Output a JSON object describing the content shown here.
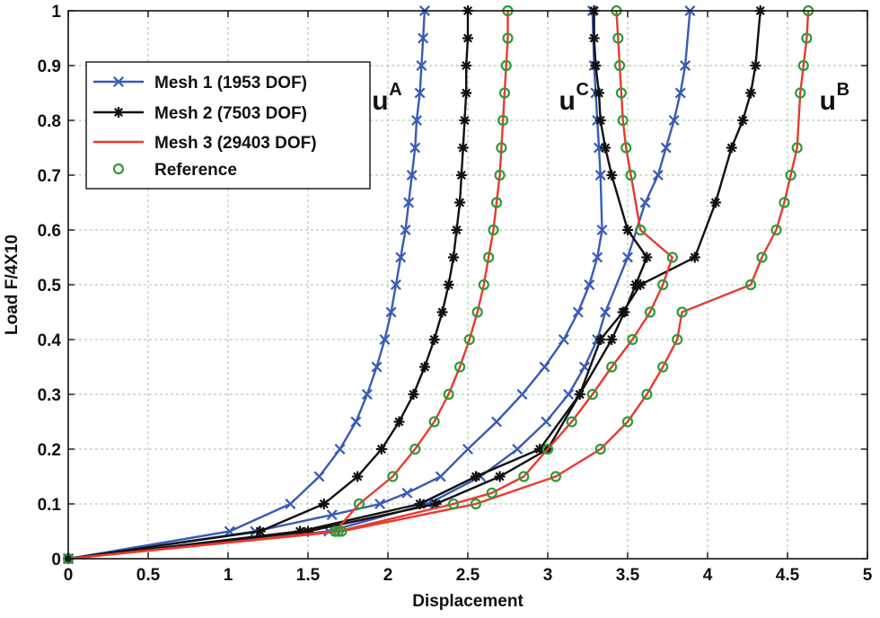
{
  "chart_data": {
    "type": "line",
    "title": "",
    "xlabel": "Displacement",
    "ylabel": "Load F/4X10",
    "xlim": [
      0,
      5
    ],
    "ylim": [
      0,
      1
    ],
    "grid": true,
    "legend_position": "top-left",
    "x_ticks": [
      0,
      0.5,
      1,
      1.5,
      2,
      2.5,
      3,
      3.5,
      4,
      4.5,
      5
    ],
    "y_ticks": [
      0,
      0.1,
      0.2,
      0.3,
      0.4,
      0.5,
      0.6,
      0.7,
      0.8,
      0.9,
      1
    ],
    "x_tick_labels": [
      "0",
      "0.5",
      "1",
      "1.5",
      "2",
      "2.5",
      "3",
      "3.5",
      "4",
      "4.5",
      "5"
    ],
    "y_tick_labels": [
      "0",
      "0.1",
      "0.2",
      "0.3",
      "0.4",
      "0.5",
      "0.6",
      "0.7",
      "0.8",
      "0.9",
      "1"
    ],
    "annotations": [
      {
        "id": "uA",
        "base": "u",
        "sup": "A",
        "x": 1.9,
        "y": 0.82
      },
      {
        "id": "uC",
        "base": "u",
        "sup": "C",
        "x": 3.07,
        "y": 0.82
      },
      {
        "id": "uB",
        "base": "u",
        "sup": "B",
        "x": 4.7,
        "y": 0.82
      }
    ],
    "series": [
      {
        "name": "Mesh 1 (1953 DOF)",
        "color": "#3a5bb5",
        "line": true,
        "marker": "x",
        "curves": [
          {
            "label": "uA",
            "x": [
              0,
              1.01,
              1.39,
              1.57,
              1.7,
              1.8,
              1.87,
              1.93,
              1.98,
              2.02,
              2.05,
              2.08,
              2.11,
              2.13,
              2.15,
              2.17,
              2.18,
              2.2,
              2.21,
              2.22,
              2.23
            ],
            "y": [
              0,
              0.05,
              0.1,
              0.15,
              0.2,
              0.25,
              0.3,
              0.35,
              0.4,
              0.45,
              0.5,
              0.55,
              0.6,
              0.65,
              0.7,
              0.75,
              0.8,
              0.85,
              0.9,
              0.95,
              1.0
            ]
          },
          {
            "label": "uC",
            "x": [
              0,
              1.17,
              1.65,
              1.95,
              2.12,
              2.33,
              2.5,
              2.68,
              2.84,
              2.98,
              3.1,
              3.19,
              3.26,
              3.31,
              3.34,
              3.33,
              3.32,
              3.31,
              3.3,
              3.29,
              3.28
            ],
            "y": [
              0,
              0.05,
              0.08,
              0.1,
              0.12,
              0.15,
              0.2,
              0.25,
              0.3,
              0.35,
              0.4,
              0.45,
              0.5,
              0.55,
              0.6,
              0.7,
              0.75,
              0.8,
              0.85,
              0.9,
              1.0
            ]
          },
          {
            "label": "uB",
            "x": [
              0,
              1.63,
              2.25,
              2.58,
              2.81,
              2.99,
              3.13,
              3.23,
              3.31,
              3.36,
              3.5,
              3.61,
              3.69,
              3.74,
              3.79,
              3.83,
              3.86,
              3.89
            ],
            "y": [
              0,
              0.05,
              0.1,
              0.15,
              0.2,
              0.25,
              0.3,
              0.35,
              0.4,
              0.45,
              0.55,
              0.65,
              0.7,
              0.75,
              0.8,
              0.85,
              0.9,
              1.0
            ]
          }
        ]
      },
      {
        "name": "Mesh 2 (7503 DOF)",
        "color": "#111111",
        "line": true,
        "marker": "*",
        "curves": [
          {
            "label": "uA",
            "x": [
              0,
              1.2,
              1.6,
              1.81,
              1.96,
              2.07,
              2.16,
              2.23,
              2.29,
              2.34,
              2.38,
              2.41,
              2.43,
              2.45,
              2.46,
              2.47,
              2.48,
              2.49,
              2.49,
              2.5,
              2.5
            ],
            "y": [
              0,
              0.05,
              0.1,
              0.15,
              0.2,
              0.25,
              0.3,
              0.35,
              0.4,
              0.45,
              0.5,
              0.55,
              0.6,
              0.65,
              0.7,
              0.75,
              0.8,
              0.85,
              0.9,
              0.95,
              1.0
            ]
          },
          {
            "label": "uC",
            "x": [
              0,
              1.45,
              2.2,
              2.55,
              2.95,
              3.2,
              3.4,
              3.48,
              3.55,
              3.62,
              3.5,
              3.4,
              3.36,
              3.33,
              3.32,
              3.3,
              3.29,
              3.29
            ],
            "y": [
              0,
              0.05,
              0.1,
              0.15,
              0.2,
              0.3,
              0.4,
              0.45,
              0.5,
              0.55,
              0.6,
              0.7,
              0.75,
              0.8,
              0.85,
              0.9,
              0.95,
              1.0
            ]
          },
          {
            "label": "uB",
            "x": [
              0,
              1.5,
              2.3,
              2.7,
              3.0,
              3.2,
              3.33,
              3.47,
              3.58,
              3.92,
              4.05,
              4.15,
              4.22,
              4.27,
              4.3,
              4.33
            ],
            "y": [
              0,
              0.05,
              0.1,
              0.15,
              0.2,
              0.3,
              0.4,
              0.45,
              0.5,
              0.55,
              0.65,
              0.75,
              0.8,
              0.85,
              0.9,
              1.0
            ]
          }
        ]
      },
      {
        "name": "Mesh 3 (29403 DOF)",
        "color": "#e83a2f",
        "line": true,
        "marker": "",
        "curves": [
          {
            "label": "uA",
            "x": [
              0,
              1.67,
              1.82,
              2.03,
              2.17,
              2.29,
              2.38,
              2.45,
              2.51,
              2.56,
              2.6,
              2.63,
              2.66,
              2.68,
              2.7,
              2.71,
              2.72,
              2.73,
              2.74,
              2.75,
              2.75
            ],
            "y": [
              0,
              0.05,
              0.1,
              0.15,
              0.2,
              0.25,
              0.3,
              0.35,
              0.4,
              0.45,
              0.5,
              0.55,
              0.6,
              0.65,
              0.7,
              0.75,
              0.8,
              0.85,
              0.9,
              0.95,
              1.0
            ]
          },
          {
            "label": "uC",
            "x": [
              0,
              1.69,
              2.41,
              2.65,
              2.85,
              3.0,
              3.15,
              3.28,
              3.4,
              3.53,
              3.64,
              3.72,
              3.78,
              3.58,
              3.52,
              3.49,
              3.47,
              3.46,
              3.45,
              3.44,
              3.43
            ],
            "y": [
              0,
              0.05,
              0.1,
              0.12,
              0.15,
              0.2,
              0.25,
              0.3,
              0.35,
              0.4,
              0.45,
              0.5,
              0.55,
              0.6,
              0.7,
              0.75,
              0.8,
              0.85,
              0.9,
              0.95,
              1.0
            ]
          },
          {
            "label": "uB",
            "x": [
              0,
              1.71,
              2.55,
              3.05,
              3.33,
              3.5,
              3.62,
              3.72,
              3.81,
              3.84,
              4.27,
              4.34,
              4.43,
              4.48,
              4.52,
              4.56,
              4.58,
              4.6,
              4.62,
              4.63
            ],
            "y": [
              0,
              0.05,
              0.1,
              0.15,
              0.2,
              0.25,
              0.3,
              0.35,
              0.4,
              0.45,
              0.5,
              0.55,
              0.6,
              0.65,
              0.7,
              0.75,
              0.85,
              0.9,
              0.95,
              1.0
            ]
          }
        ]
      },
      {
        "name": "Reference",
        "color": "#2e9a3a",
        "line": false,
        "marker": "o",
        "curves": [
          {
            "label": "uA",
            "x": [
              0,
              1.67,
              1.82,
              2.03,
              2.17,
              2.29,
              2.38,
              2.45,
              2.51,
              2.56,
              2.6,
              2.63,
              2.66,
              2.68,
              2.7,
              2.71,
              2.72,
              2.73,
              2.74,
              2.75,
              2.75
            ],
            "y": [
              0,
              0.05,
              0.1,
              0.15,
              0.2,
              0.25,
              0.3,
              0.35,
              0.4,
              0.45,
              0.5,
              0.55,
              0.6,
              0.65,
              0.7,
              0.75,
              0.8,
              0.85,
              0.9,
              0.95,
              1.0
            ]
          },
          {
            "label": "uC",
            "x": [
              1.69,
              2.41,
              2.65,
              2.85,
              3.0,
              3.15,
              3.28,
              3.4,
              3.53,
              3.64,
              3.72,
              3.78,
              3.58,
              3.52,
              3.49,
              3.47,
              3.46,
              3.45,
              3.44,
              3.43
            ],
            "y": [
              0.05,
              0.1,
              0.12,
              0.15,
              0.2,
              0.25,
              0.3,
              0.35,
              0.4,
              0.45,
              0.5,
              0.55,
              0.6,
              0.7,
              0.75,
              0.8,
              0.85,
              0.9,
              0.95,
              1.0
            ]
          },
          {
            "label": "uB",
            "x": [
              1.71,
              2.55,
              3.05,
              3.33,
              3.5,
              3.62,
              3.72,
              3.81,
              3.84,
              4.27,
              4.34,
              4.43,
              4.48,
              4.52,
              4.56,
              4.58,
              4.6,
              4.62,
              4.63
            ],
            "y": [
              0.05,
              0.1,
              0.15,
              0.2,
              0.25,
              0.3,
              0.35,
              0.4,
              0.45,
              0.5,
              0.55,
              0.6,
              0.65,
              0.7,
              0.75,
              0.85,
              0.9,
              0.95,
              1.0
            ]
          }
        ]
      }
    ]
  }
}
